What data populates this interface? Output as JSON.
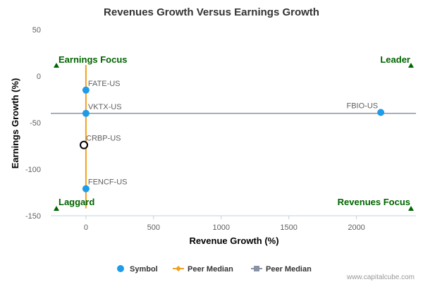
{
  "chart_data": {
    "type": "scatter",
    "title": "Revenues Growth Versus Earnings Growth",
    "xlabel": "Revenue Growth (%)",
    "ylabel": "Earnings Growth (%)",
    "xlim": [
      -260,
      2440
    ],
    "ylim": [
      -150,
      50
    ],
    "x_ticks": [
      0,
      500,
      1000,
      1500,
      2000
    ],
    "y_ticks": [
      50,
      0,
      -50,
      -100,
      -150
    ],
    "points": [
      {
        "label": "FATE-US",
        "x": 0,
        "y": -15,
        "style": "filled"
      },
      {
        "label": "VKTX-US",
        "x": 0,
        "y": -40,
        "style": "filled"
      },
      {
        "label": "FBIO-US",
        "x": 2180,
        "y": -39,
        "style": "filled"
      },
      {
        "label": "CRBP-US",
        "x": -15,
        "y": -74,
        "style": "hollow"
      },
      {
        "label": "FENCF-US",
        "x": 0,
        "y": -121,
        "style": "filled"
      }
    ],
    "peer_median_x": 0,
    "peer_median_y": -40,
    "peer_median_x_range": [
      -142,
      12
    ],
    "peer_median_y_range": [
      -260,
      2440
    ],
    "quadrants": {
      "top_left": "Earnings Focus",
      "top_right": "Leader",
      "bottom_left": "Laggard",
      "bottom_right": "Revenues Focus"
    },
    "legend": [
      {
        "label": "Symbol",
        "kind": "symbol"
      },
      {
        "label": "Peer Median",
        "kind": "peer-median-vertical"
      },
      {
        "label": "Peer Median",
        "kind": "peer-median-horizontal"
      }
    ]
  },
  "colors": {
    "point": "#1e9be9",
    "hollow_stroke": "#000000",
    "median_vertical": "#f0a020",
    "median_horizontal": "#8a93a6",
    "quadrant": "#006400"
  },
  "credit": "www.capitalcube.com"
}
